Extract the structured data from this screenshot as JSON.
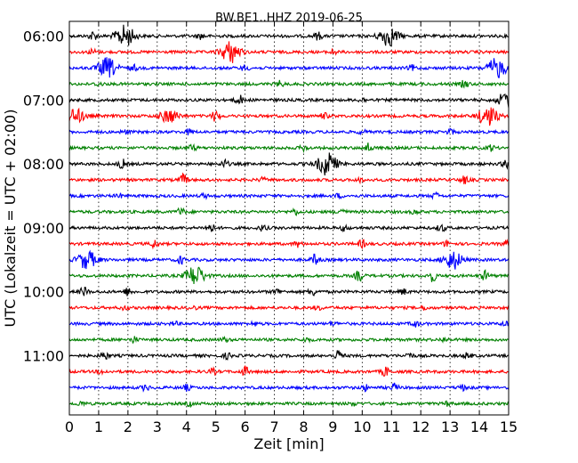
{
  "chart_data": {
    "type": "line",
    "title": "BW.BE1..HHZ 2019-06-25",
    "xlabel": "Zeit  [min]",
    "ylabel": "UTC (Lokalzeit = UTC + 02:00)",
    "xlim": [
      0,
      15
    ],
    "x_ticks": [
      "0",
      "1",
      "2",
      "3",
      "4",
      "5",
      "6",
      "7",
      "8",
      "9",
      "10",
      "11",
      "12",
      "13",
      "14",
      "15"
    ],
    "y_ticks": [
      "06:00",
      "07:00",
      "08:00",
      "09:00",
      "10:00",
      "11:00"
    ],
    "grid": "vertical dotted lines at each minute",
    "trace_colors": [
      "#000000",
      "#ff0000",
      "#0000ff",
      "#008000"
    ],
    "trace_start_times": [
      "06:00",
      "06:15",
      "06:30",
      "06:45",
      "07:00",
      "07:15",
      "07:30",
      "07:45",
      "08:00",
      "08:15",
      "08:30",
      "08:45",
      "09:00",
      "09:15",
      "09:30",
      "09:45",
      "10:00",
      "10:15",
      "10:30",
      "10:45",
      "11:00",
      "11:15",
      "11:30",
      "11:45"
    ],
    "bursts": [
      [
        [
          0.8,
          5
        ],
        [
          1.9,
          12
        ],
        [
          4.5,
          3
        ],
        [
          8.5,
          4
        ],
        [
          10.9,
          11
        ]
      ],
      [
        [
          0.8,
          3
        ],
        [
          5.5,
          12
        ],
        [
          9.0,
          3
        ]
      ],
      [
        [
          1.3,
          11
        ],
        [
          2.2,
          3
        ],
        [
          6.0,
          3
        ],
        [
          11.7,
          3
        ],
        [
          14.6,
          11
        ]
      ],
      [
        [
          1.0,
          2
        ],
        [
          7.2,
          3
        ],
        [
          13.5,
          4
        ]
      ],
      [
        [
          5.8,
          5
        ],
        [
          10.0,
          2
        ],
        [
          14.95,
          9
        ]
      ],
      [
        [
          0.2,
          8
        ],
        [
          3.4,
          7
        ],
        [
          5.0,
          6
        ],
        [
          8.7,
          3
        ],
        [
          14.3,
          11
        ]
      ],
      [
        [
          1.9,
          2
        ],
        [
          4.1,
          3
        ],
        [
          10.0,
          2
        ],
        [
          13.0,
          3
        ]
      ],
      [
        [
          4.2,
          3
        ],
        [
          8.0,
          3
        ],
        [
          10.2,
          5
        ],
        [
          14.4,
          3
        ]
      ],
      [
        [
          1.8,
          5
        ],
        [
          5.3,
          4
        ],
        [
          8.8,
          13
        ],
        [
          14.9,
          4
        ]
      ],
      [
        [
          3.9,
          6
        ],
        [
          6.6,
          2
        ],
        [
          9.9,
          2
        ],
        [
          13.5,
          4
        ]
      ],
      [
        [
          1.7,
          2
        ],
        [
          4.6,
          2
        ],
        [
          9.2,
          2
        ],
        [
          12.5,
          3
        ]
      ],
      [
        [
          3.8,
          4
        ],
        [
          7.7,
          3
        ],
        [
          9.3,
          4
        ],
        [
          11.8,
          2
        ]
      ],
      [
        [
          4.8,
          6
        ],
        [
          6.6,
          3
        ],
        [
          9.4,
          3
        ],
        [
          12.7,
          4
        ]
      ],
      [
        [
          2.9,
          4
        ],
        [
          7.8,
          3
        ],
        [
          10.0,
          4
        ],
        [
          12.9,
          3
        ],
        [
          14.9,
          3
        ]
      ],
      [
        [
          0.6,
          10
        ],
        [
          3.8,
          4
        ],
        [
          8.4,
          6
        ],
        [
          13.1,
          10
        ]
      ],
      [
        [
          4.3,
          11
        ],
        [
          9.9,
          6
        ],
        [
          12.4,
          6
        ],
        [
          14.2,
          5
        ]
      ],
      [
        [
          0.5,
          5
        ],
        [
          2.0,
          4
        ],
        [
          7.1,
          3
        ],
        [
          8.3,
          4
        ],
        [
          11.4,
          3
        ]
      ],
      [
        [
          1.9,
          2
        ],
        [
          4.2,
          2
        ],
        [
          8.5,
          2
        ],
        [
          12.1,
          2
        ]
      ],
      [
        [
          3.6,
          2
        ],
        [
          6.3,
          2
        ],
        [
          9.0,
          2
        ],
        [
          11.8,
          3
        ],
        [
          14.9,
          3
        ]
      ],
      [
        [
          2.2,
          3
        ],
        [
          5.3,
          2
        ],
        [
          8.1,
          2
        ],
        [
          12.8,
          2
        ]
      ],
      [
        [
          1.2,
          4
        ],
        [
          5.4,
          3
        ],
        [
          9.2,
          6
        ],
        [
          11.6,
          3
        ],
        [
          13.6,
          3
        ]
      ],
      [
        [
          1.1,
          2
        ],
        [
          4.9,
          3
        ],
        [
          6.0,
          5
        ],
        [
          10.8,
          5
        ]
      ],
      [
        [
          2.6,
          3
        ],
        [
          4.0,
          3
        ],
        [
          10.1,
          3
        ],
        [
          11.1,
          4
        ],
        [
          13.4,
          3
        ]
      ],
      [
        [
          0.4,
          2
        ],
        [
          4.1,
          2
        ],
        [
          9.7,
          2
        ],
        [
          12.9,
          2
        ]
      ]
    ]
  }
}
